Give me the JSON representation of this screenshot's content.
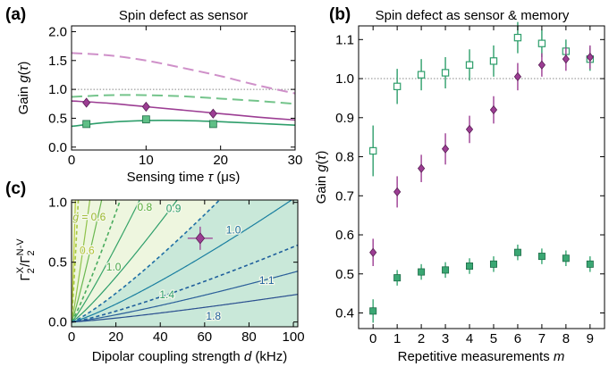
{
  "chart_data": [
    {
      "id": "a",
      "type": "line",
      "panel_label": "(a)",
      "title": "Spin defect as sensor",
      "xlabel_parts": [
        "Sensing time ",
        "τ",
        " (μs)"
      ],
      "ylabel_parts": [
        "Gain ",
        "g",
        "(",
        "τ",
        ")"
      ],
      "xlim": [
        0,
        30
      ],
      "ylim": [
        -0.05,
        2.1
      ],
      "xticks": [
        0,
        10,
        20,
        30
      ],
      "yticks": [
        0.0,
        0.5,
        1.0,
        1.5,
        2.0
      ],
      "ytick_labels": [
        "0.0",
        "0.5",
        "1.0",
        "1.5",
        "2.0"
      ],
      "reference_line": 1.0,
      "colors": {
        "purple": "#9c3d93",
        "purple_light": "#cf90c9",
        "green": "#2e9e6b",
        "green_light": "#74c48b",
        "green_fill": "#5fbf86"
      },
      "series": [
        {
          "style": "dashed",
          "color_key": "purple_light",
          "x": [
            0,
            5,
            10,
            15,
            20,
            25,
            30
          ],
          "y": [
            1.63,
            1.59,
            1.5,
            1.37,
            1.23,
            1.07,
            0.93
          ]
        },
        {
          "style": "dashed",
          "color_key": "green_light",
          "x": [
            0,
            5,
            10,
            15,
            20,
            25,
            30
          ],
          "y": [
            0.87,
            0.9,
            0.9,
            0.88,
            0.84,
            0.8,
            0.75
          ]
        },
        {
          "style": "solid",
          "color_key": "purple",
          "x": [
            0,
            5,
            10,
            15,
            20,
            25,
            30
          ],
          "y": [
            0.8,
            0.76,
            0.7,
            0.64,
            0.58,
            0.52,
            0.47
          ]
        },
        {
          "style": "solid",
          "color_key": "green",
          "x": [
            0,
            5,
            10,
            15,
            20,
            25,
            30
          ],
          "y": [
            0.36,
            0.43,
            0.46,
            0.46,
            0.44,
            0.41,
            0.38
          ]
        }
      ],
      "points": [
        {
          "marker": "diamond",
          "color_key": "purple",
          "x": [
            2,
            10,
            19
          ],
          "y": [
            0.77,
            0.7,
            0.58
          ]
        },
        {
          "marker": "square",
          "color_key": "green",
          "x": [
            2,
            10,
            19
          ],
          "y": [
            0.4,
            0.48,
            0.4
          ]
        }
      ]
    },
    {
      "id": "b",
      "type": "scatter",
      "panel_label": "(b)",
      "title": "Spin defect as sensor & memory",
      "xlabel_parts": [
        "Repetitive measurements ",
        "m"
      ],
      "ylabel_parts": [
        "Gain ",
        "g",
        "(",
        "τ",
        ")"
      ],
      "xlim": [
        -0.6,
        9.6
      ],
      "ylim": [
        0.36,
        1.135
      ],
      "xticks": [
        0,
        1,
        2,
        3,
        4,
        5,
        6,
        7,
        8,
        9
      ],
      "yticks": [
        0.4,
        0.5,
        0.6,
        0.7,
        0.8,
        0.9,
        1.0,
        1.1
      ],
      "ytick_labels": [
        "0.4",
        "0.5",
        "0.6",
        "0.7",
        "0.8",
        "0.9",
        "1.0",
        "1.1"
      ],
      "reference_line": 1.0,
      "series": [
        {
          "marker": "square-open",
          "color": "#2e9e6b",
          "x": [
            0,
            1,
            2,
            3,
            4,
            5,
            6,
            7,
            8,
            9
          ],
          "y": [
            0.815,
            0.98,
            1.01,
            1.015,
            1.035,
            1.045,
            1.105,
            1.09,
            1.07,
            1.05
          ],
          "err": [
            0.065,
            0.045,
            0.04,
            0.04,
            0.04,
            0.04,
            0.04,
            0.035,
            0.03,
            0.03
          ]
        },
        {
          "marker": "diamond",
          "color": "#9c3d93",
          "x": [
            0,
            1,
            2,
            3,
            4,
            5,
            6,
            7,
            8,
            9
          ],
          "y": [
            0.555,
            0.71,
            0.77,
            0.82,
            0.87,
            0.92,
            1.005,
            1.035,
            1.05,
            1.055
          ],
          "err": [
            0.035,
            0.04,
            0.035,
            0.04,
            0.035,
            0.035,
            0.035,
            0.03,
            0.03,
            0.03
          ]
        },
        {
          "marker": "square",
          "color": "#3aa773",
          "x": [
            0,
            1,
            2,
            3,
            4,
            5,
            6,
            7,
            8,
            9
          ],
          "y": [
            0.405,
            0.49,
            0.505,
            0.51,
            0.52,
            0.525,
            0.555,
            0.545,
            0.54,
            0.525
          ],
          "err": [
            0.03,
            0.02,
            0.02,
            0.02,
            0.02,
            0.02,
            0.02,
            0.02,
            0.02,
            0.02
          ]
        }
      ]
    },
    {
      "id": "c",
      "type": "line",
      "panel_label": "(c)",
      "xlabel_parts": [
        "Dipolar coupling strength ",
        "d",
        " (kHz)"
      ],
      "ylabel_math": {
        "top_left": "Γ",
        "top_sup": "X",
        "top_sub": "2",
        "slash": "/",
        "bot": "Γ",
        "bot_sup": "N-V",
        "bot_sub": "2"
      },
      "xlim": [
        0,
        102
      ],
      "ylim": [
        -0.04,
        1.02
      ],
      "xticks": [
        0,
        20,
        40,
        60,
        80,
        100
      ],
      "yticks": [
        0.0,
        0.5,
        1.0
      ],
      "ytick_labels": [
        "0.0",
        "0.5",
        "1.0"
      ],
      "contour_labels": [
        {
          "text": "g = 0.6",
          "x": 8,
          "y": 0.88,
          "color": "#9cb82e"
        },
        {
          "text": "0.6",
          "x": 7,
          "y": 0.6,
          "color": "#b4c43a"
        },
        {
          "text": "0.8",
          "x": 33,
          "y": 0.96,
          "color": "#5aaf3e"
        },
        {
          "text": "1.0",
          "x": 19,
          "y": 0.46,
          "color": "#4aa84a"
        },
        {
          "text": "0.9",
          "x": 46,
          "y": 0.95,
          "color": "#2e9e6b"
        },
        {
          "text": "1.0",
          "x": 73,
          "y": 0.77,
          "color": "#1e6fa0"
        },
        {
          "text": "1.4",
          "x": 43,
          "y": 0.23,
          "color": "#2e9e6b"
        },
        {
          "text": "1.1",
          "x": 88,
          "y": 0.35,
          "color": "#1e5f9c"
        },
        {
          "text": "1.8",
          "x": 64,
          "y": 0.05,
          "color": "#1e5f9c"
        }
      ],
      "contours": [
        {
          "style": "solid",
          "color": "#bccf3a",
          "k": 0.55,
          "p": 1.1
        },
        {
          "style": "dashed",
          "color": "#a7c840",
          "k": 0.3,
          "p": 1.1
        },
        {
          "style": "solid",
          "color": "#8fc24a",
          "k": 0.1,
          "p": 1.1
        },
        {
          "style": "solid",
          "color": "#6bb852",
          "k": 0.055,
          "p": 1.12
        },
        {
          "style": "dashed",
          "color": "#4aac5e",
          "k": 0.032,
          "p": 1.12
        },
        {
          "style": "solid",
          "color": "#37a468",
          "k": 0.022,
          "p": 1.12
        },
        {
          "style": "solid",
          "color": "#2e9e6b",
          "k": 0.012,
          "p": 1.15
        },
        {
          "style": "dashed",
          "color": "#1f6fa5",
          "k": 0.0066,
          "p": 1.2
        },
        {
          "style": "solid",
          "color": "#1a7fa0",
          "k": 0.0041,
          "p": 1.2
        },
        {
          "style": "dashed",
          "color": "#1f5f9c",
          "k": 0.0025,
          "p": 1.2
        },
        {
          "style": "solid",
          "color": "#2a5e99",
          "k": 0.00165,
          "p": 1.2
        },
        {
          "style": "solid",
          "color": "#2a4f8f",
          "k": 0.0009,
          "p": 1.2
        }
      ],
      "region_fill_light": "#eef6df",
      "region_fill_dark": "#c9e8d9",
      "point": {
        "x": 58,
        "y": 0.7,
        "color": "#9c3d93"
      }
    }
  ]
}
